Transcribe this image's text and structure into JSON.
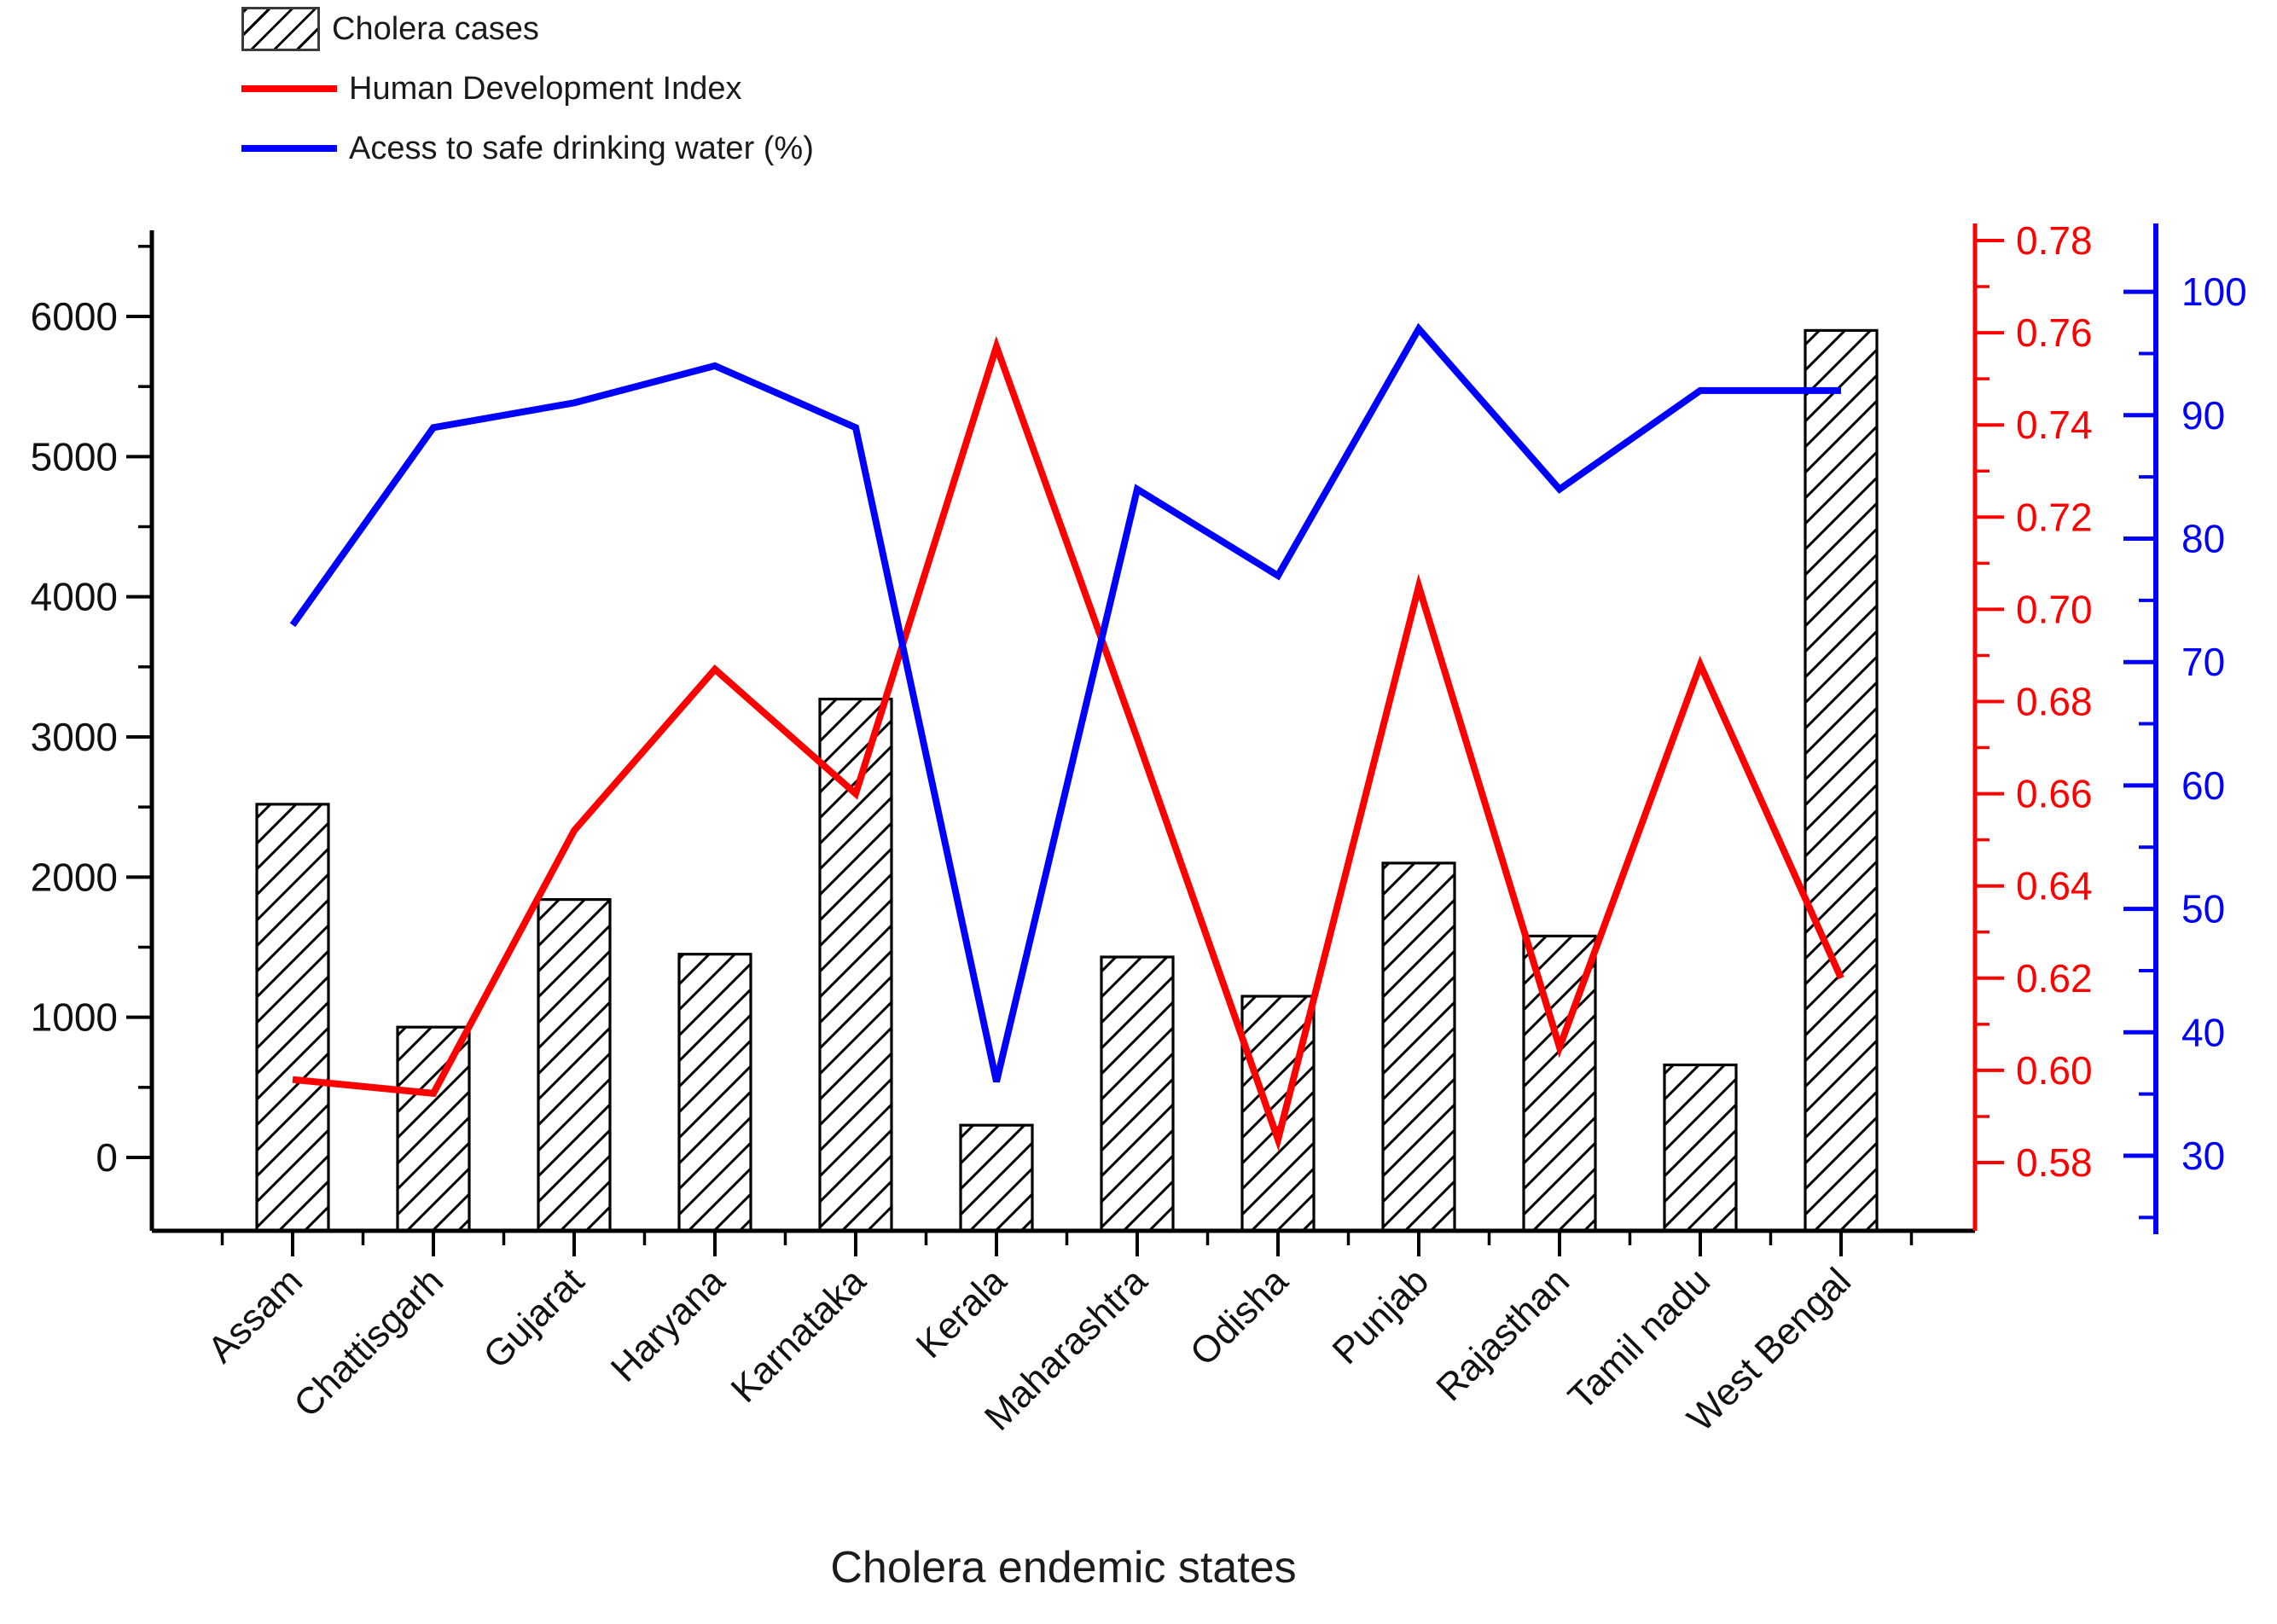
{
  "legend": {
    "items": [
      {
        "label": "Cholera cases",
        "type": "hatch-box",
        "color": "#000000"
      },
      {
        "label": "Human Development Index",
        "type": "line",
        "color": "#ff0000"
      },
      {
        "label": "Acess to safe drinking water (%)",
        "type": "line",
        "color": "#0000ff"
      }
    ]
  },
  "chart_data": {
    "type": "bar",
    "subtype": "combo-bar-and-lines",
    "title": "",
    "xlabel": "Cholera endemic states",
    "categories": [
      "Assam",
      "Chattisgarh",
      "Gujarat",
      "Haryana",
      "Karnataka",
      "Kerala",
      "Maharashtra",
      "Odisha",
      "Punjab",
      "Rajasthan",
      "Tamil nadu",
      "West Bengal"
    ],
    "series": [
      {
        "name": "Cholera cases",
        "type": "bar",
        "axis": "left",
        "fill": "hatched",
        "color": "#000000",
        "values": [
          2520,
          930,
          1840,
          1450,
          3270,
          230,
          1430,
          1150,
          2100,
          1580,
          660,
          5900
        ]
      },
      {
        "name": "Human Development Index",
        "type": "line",
        "axis": "right-red",
        "color": "#ff0000",
        "values": [
          0.598,
          0.595,
          0.652,
          0.687,
          0.66,
          0.757,
          0.672,
          0.585,
          0.705,
          0.605,
          0.688,
          0.62
        ]
      },
      {
        "name": "Acess to safe drinking water (%)",
        "type": "line",
        "axis": "right-blue",
        "color": "#0000ff",
        "values": [
          73,
          89,
          91,
          94,
          89,
          36,
          84,
          77,
          97,
          84,
          92,
          92
        ]
      }
    ],
    "axes": {
      "left": {
        "color": "#000000",
        "tick_labels": [
          "0",
          "1000",
          "2000",
          "3000",
          "4000",
          "5000",
          "6000"
        ],
        "tick_values": [
          0,
          1000,
          2000,
          3000,
          4000,
          5000,
          6000
        ],
        "minor_tick_values": [
          500,
          1500,
          2500,
          3500,
          4500,
          5500,
          6500
        ],
        "range": [
          -520,
          6620
        ],
        "grid": false
      },
      "right_red": {
        "color": "#ff0000",
        "tick_labels": [
          "0.58",
          "0.60",
          "0.62",
          "0.64",
          "0.66",
          "0.68",
          "0.70",
          "0.72",
          "0.74",
          "0.76",
          "0.78"
        ],
        "tick_values": [
          0.58,
          0.6,
          0.62,
          0.64,
          0.66,
          0.68,
          0.7,
          0.72,
          0.74,
          0.76,
          0.78
        ],
        "minor_tick_values": [
          0.59,
          0.61,
          0.63,
          0.65,
          0.67,
          0.69,
          0.71,
          0.73,
          0.75,
          0.77
        ],
        "range": [
          0.565,
          0.784
        ],
        "grid": false
      },
      "right_blue": {
        "color": "#0000ff",
        "tick_labels": [
          "30",
          "40",
          "50",
          "60",
          "70",
          "80",
          "90",
          "100"
        ],
        "tick_values": [
          30,
          40,
          50,
          60,
          70,
          80,
          90,
          100
        ],
        "minor_tick_values": [
          25,
          35,
          45,
          55,
          65,
          75,
          85,
          95
        ],
        "range": [
          23.7,
          105.5
        ],
        "grid": false
      }
    },
    "legend_position": "top-left"
  }
}
